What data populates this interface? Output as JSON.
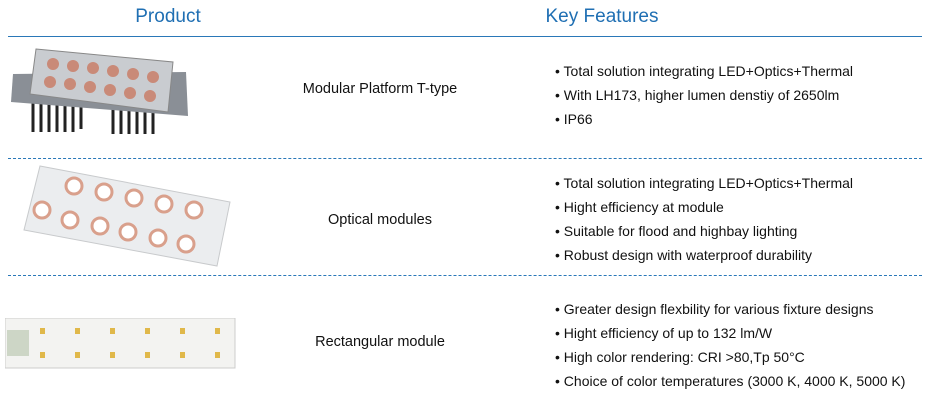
{
  "header": {
    "product": "Product",
    "features": "Key Features"
  },
  "rows": [
    {
      "name": "Modular Platform T-type",
      "features": [
        "Total solution integrating LED+Optics+Thermal",
        "With LH173, higher lumen denstiy of 2650lm",
        "IP66"
      ]
    },
    {
      "name": "Optical modules",
      "features": [
        "Total solution integrating LED+Optics+Thermal",
        "Hight  efficiency at module",
        "Suitable for flood and highbay lighting",
        "Robust design with waterproof durability"
      ]
    },
    {
      "name": "Rectangular module",
      "features": [
        "Greater design flexbility for various fixture designs",
        "Hight  efficiency of up to 132 lm/W",
        "High color rendering: CRI >80,Tp 50°C",
        "Choice of color temperatures (3000 K, 4000 K, 5000 K)"
      ]
    }
  ]
}
